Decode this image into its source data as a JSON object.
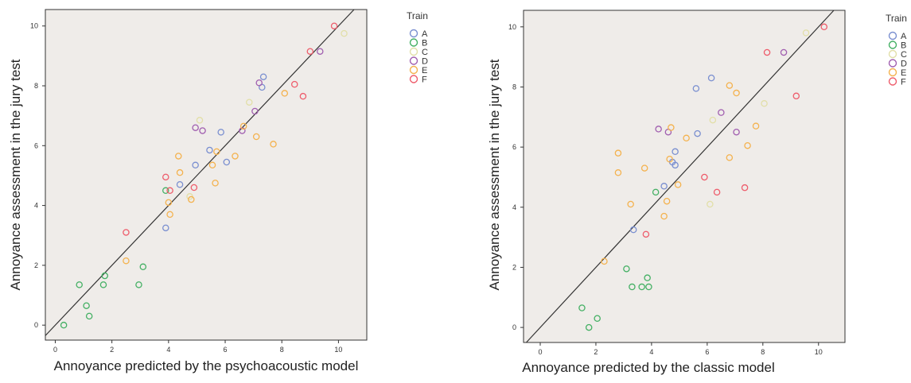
{
  "chart_data": [
    {
      "type": "scatter",
      "xlabel": "Annoyance predicted by the psychoacoustic model",
      "ylabel": "Annoyance assessment in the jury test",
      "xlim": [
        -0.35,
        11.0
      ],
      "ylim": [
        -0.5,
        10.55
      ],
      "xticks": [
        "0",
        "2",
        "4",
        "6",
        "8",
        "10"
      ],
      "yticks": [
        "0",
        "2",
        "4",
        "6",
        "8",
        "10"
      ],
      "grid": false,
      "reference_line": "y = x",
      "legend_title": "Train",
      "legend_position": "right",
      "series": [
        {
          "name": "A",
          "color": "#7a8fd0",
          "points": [
            [
              3.9,
              3.25
            ],
            [
              4.4,
              4.7
            ],
            [
              4.95,
              5.35
            ],
            [
              5.45,
              5.85
            ],
            [
              5.85,
              6.45
            ],
            [
              6.05,
              5.45
            ],
            [
              7.3,
              7.95
            ],
            [
              7.35,
              8.3
            ]
          ]
        },
        {
          "name": "B",
          "color": "#44b064",
          "points": [
            [
              0.3,
              0.0
            ],
            [
              0.85,
              1.35
            ],
            [
              1.1,
              0.65
            ],
            [
              1.2,
              0.3
            ],
            [
              1.7,
              1.35
            ],
            [
              1.75,
              1.65
            ],
            [
              2.95,
              1.35
            ],
            [
              3.1,
              1.95
            ],
            [
              3.9,
              4.5
            ]
          ]
        },
        {
          "name": "C",
          "color": "#e2dfa8",
          "points": [
            [
              4.75,
              4.3
            ],
            [
              5.1,
              6.85
            ],
            [
              6.85,
              7.45
            ],
            [
              10.2,
              9.75
            ]
          ]
        },
        {
          "name": "D",
          "color": "#a15fb0",
          "points": [
            [
              4.95,
              6.6
            ],
            [
              5.2,
              6.5
            ],
            [
              6.6,
              6.5
            ],
            [
              7.05,
              7.15
            ],
            [
              7.2,
              8.1
            ],
            [
              9.35,
              9.15
            ]
          ]
        },
        {
          "name": "E",
          "color": "#f4b24e",
          "points": [
            [
              2.5,
              2.15
            ],
            [
              4.0,
              4.1
            ],
            [
              4.05,
              3.7
            ],
            [
              4.35,
              5.65
            ],
            [
              4.4,
              5.1
            ],
            [
              4.8,
              4.2
            ],
            [
              5.55,
              5.35
            ],
            [
              5.65,
              4.75
            ],
            [
              5.7,
              5.8
            ],
            [
              6.35,
              5.65
            ],
            [
              6.65,
              6.65
            ],
            [
              7.1,
              6.3
            ],
            [
              7.7,
              6.05
            ],
            [
              8.1,
              7.75
            ]
          ]
        },
        {
          "name": "F",
          "color": "#ee5d6c",
          "points": [
            [
              2.5,
              3.1
            ],
            [
              3.9,
              4.95
            ],
            [
              4.05,
              4.5
            ],
            [
              4.9,
              4.6
            ],
            [
              8.45,
              8.05
            ],
            [
              8.75,
              7.65
            ],
            [
              9.0,
              9.15
            ],
            [
              9.85,
              10.0
            ]
          ]
        }
      ]
    },
    {
      "type": "scatter",
      "xlabel": "Annoyance predicted by the classic model",
      "ylabel": "Annoyance assessment in the jury test",
      "xlim": [
        -0.6,
        10.95
      ],
      "ylim": [
        -0.5,
        10.55
      ],
      "xticks": [
        "0",
        "2",
        "4",
        "6",
        "8",
        "10"
      ],
      "yticks": [
        "0",
        "2",
        "4",
        "6",
        "8",
        "10"
      ],
      "grid": false,
      "reference_line": "y = x",
      "legend_title": "Train",
      "legend_position": "right",
      "series": [
        {
          "name": "A",
          "color": "#7a8fd0",
          "points": [
            [
              3.35,
              3.25
            ],
            [
              4.45,
              4.7
            ],
            [
              4.75,
              5.5
            ],
            [
              4.85,
              5.4
            ],
            [
              4.85,
              5.85
            ],
            [
              5.6,
              7.95
            ],
            [
              5.65,
              6.45
            ],
            [
              6.15,
              8.3
            ]
          ]
        },
        {
          "name": "B",
          "color": "#44b064",
          "points": [
            [
              1.5,
              0.65
            ],
            [
              1.75,
              0.0
            ],
            [
              2.05,
              0.3
            ],
            [
              3.1,
              1.95
            ],
            [
              3.3,
              1.35
            ],
            [
              3.65,
              1.35
            ],
            [
              3.85,
              1.65
            ],
            [
              3.9,
              1.35
            ],
            [
              4.15,
              4.5
            ]
          ]
        },
        {
          "name": "C",
          "color": "#e2dfa8",
          "points": [
            [
              6.1,
              4.1
            ],
            [
              6.2,
              6.9
            ],
            [
              8.05,
              7.45
            ],
            [
              9.55,
              9.8
            ]
          ]
        },
        {
          "name": "D",
          "color": "#a15fb0",
          "points": [
            [
              4.25,
              6.6
            ],
            [
              4.6,
              6.5
            ],
            [
              6.5,
              7.15
            ],
            [
              7.05,
              6.5
            ],
            [
              8.75,
              9.15
            ]
          ]
        },
        {
          "name": "E",
          "color": "#f4b24e",
          "points": [
            [
              2.3,
              2.2
            ],
            [
              2.8,
              5.8
            ],
            [
              2.8,
              5.15
            ],
            [
              3.25,
              4.1
            ],
            [
              3.75,
              5.3
            ],
            [
              4.45,
              3.7
            ],
            [
              4.55,
              4.2
            ],
            [
              4.65,
              5.6
            ],
            [
              4.7,
              6.65
            ],
            [
              4.95,
              4.75
            ],
            [
              5.25,
              6.3
            ],
            [
              6.8,
              5.65
            ],
            [
              6.8,
              8.05
            ],
            [
              7.05,
              7.8
            ],
            [
              7.45,
              6.05
            ],
            [
              7.75,
              6.7
            ]
          ]
        },
        {
          "name": "F",
          "color": "#ee5d6c",
          "points": [
            [
              3.8,
              3.1
            ],
            [
              5.9,
              5.0
            ],
            [
              6.35,
              4.5
            ],
            [
              7.35,
              4.65
            ],
            [
              8.15,
              9.15
            ],
            [
              9.2,
              7.7
            ],
            [
              10.2,
              10.0
            ]
          ]
        }
      ]
    }
  ]
}
